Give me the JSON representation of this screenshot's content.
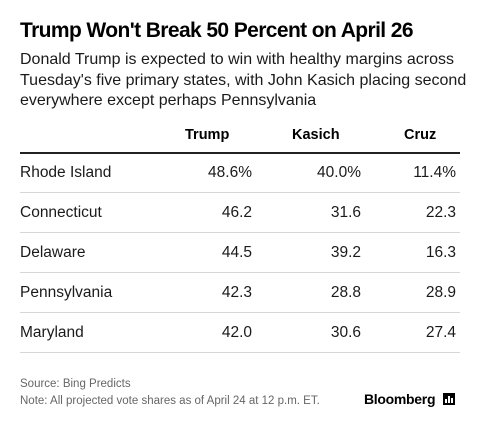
{
  "chart_data": {
    "type": "table",
    "title": "Trump Won't Break 50 Percent on April 26",
    "subtitle": "Donald Trump is expected to win with healthy margins across Tuesday's five primary states, with John Kasich placing second everywhere except perhaps Pennsylvania",
    "columns": [
      "Trump",
      "Kasich",
      "Cruz"
    ],
    "rows": [
      {
        "state": "Rhode Island",
        "values": [
          "48.6%",
          "40.0%",
          "11.4%"
        ]
      },
      {
        "state": "Connecticut",
        "values": [
          "46.2",
          "31.6",
          "22.3"
        ]
      },
      {
        "state": "Delaware",
        "values": [
          "44.5",
          "39.2",
          "16.3"
        ]
      },
      {
        "state": "Pennsylvania",
        "values": [
          "42.3",
          "28.8",
          "28.9"
        ]
      },
      {
        "state": "Maryland",
        "values": [
          "42.0",
          "30.6",
          "27.4"
        ]
      }
    ],
    "source": "Source: Bing Predicts",
    "note": "Note: All projected vote shares as of April 24 at 12 p.m. ET.",
    "brand": "Bloomberg"
  },
  "colors": {
    "text": "#1a1a1a",
    "footnote": "#666666",
    "rule": "#222222",
    "row_divider": "#d6d6d6"
  },
  "icons": {
    "brand_mark": "bloomberg-chart-logo-icon"
  }
}
